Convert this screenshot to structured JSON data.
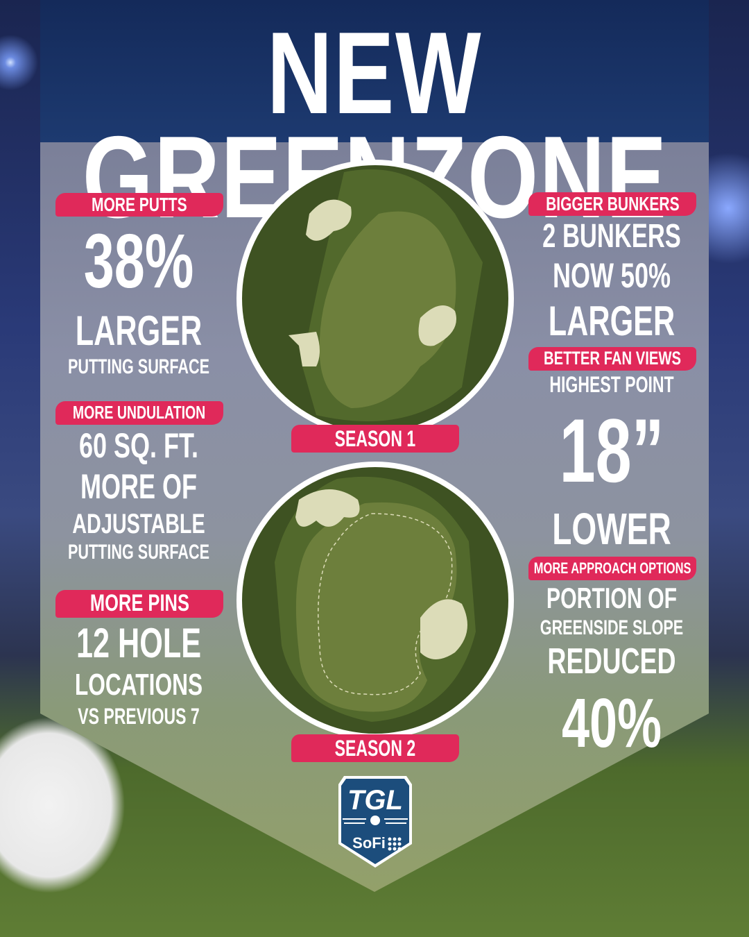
{
  "title": "NEW GREENZONE",
  "left": [
    {
      "tag": "MORE PUTTS",
      "lines": [
        "38%",
        "LARGER",
        "PUTTING SURFACE"
      ]
    },
    {
      "tag": "MORE UNDULATION",
      "lines": [
        "60 SQ. FT.",
        "MORE OF",
        "ADJUSTABLE",
        "PUTTING SURFACE"
      ]
    },
    {
      "tag": "MORE PINS",
      "lines": [
        "12 HOLE",
        "LOCATIONS",
        "VS PREVIOUS 7"
      ]
    }
  ],
  "right": [
    {
      "tag": "BIGGER BUNKERS",
      "lines": [
        "2 BUNKERS",
        "NOW 50%",
        "LARGER"
      ]
    },
    {
      "tag": "BETTER FAN VIEWS",
      "lines": [
        "HIGHEST POINT",
        "18”",
        "LOWER"
      ]
    },
    {
      "tag": "MORE APPROACH OPTIONS",
      "lines": [
        "PORTION OF",
        "GREENSIDE SLOPE",
        "REDUCED",
        "40%"
      ]
    }
  ],
  "seasons": [
    "SEASON 1",
    "SEASON 2"
  ],
  "logo": {
    "top": "TGL",
    "bottom": "SoFi"
  },
  "colors": {
    "accent": "#e0295a",
    "header": "#1d3a70",
    "rough": "#3e5222",
    "green": "#6d7f3c",
    "bunker": "#dcdcb8"
  }
}
